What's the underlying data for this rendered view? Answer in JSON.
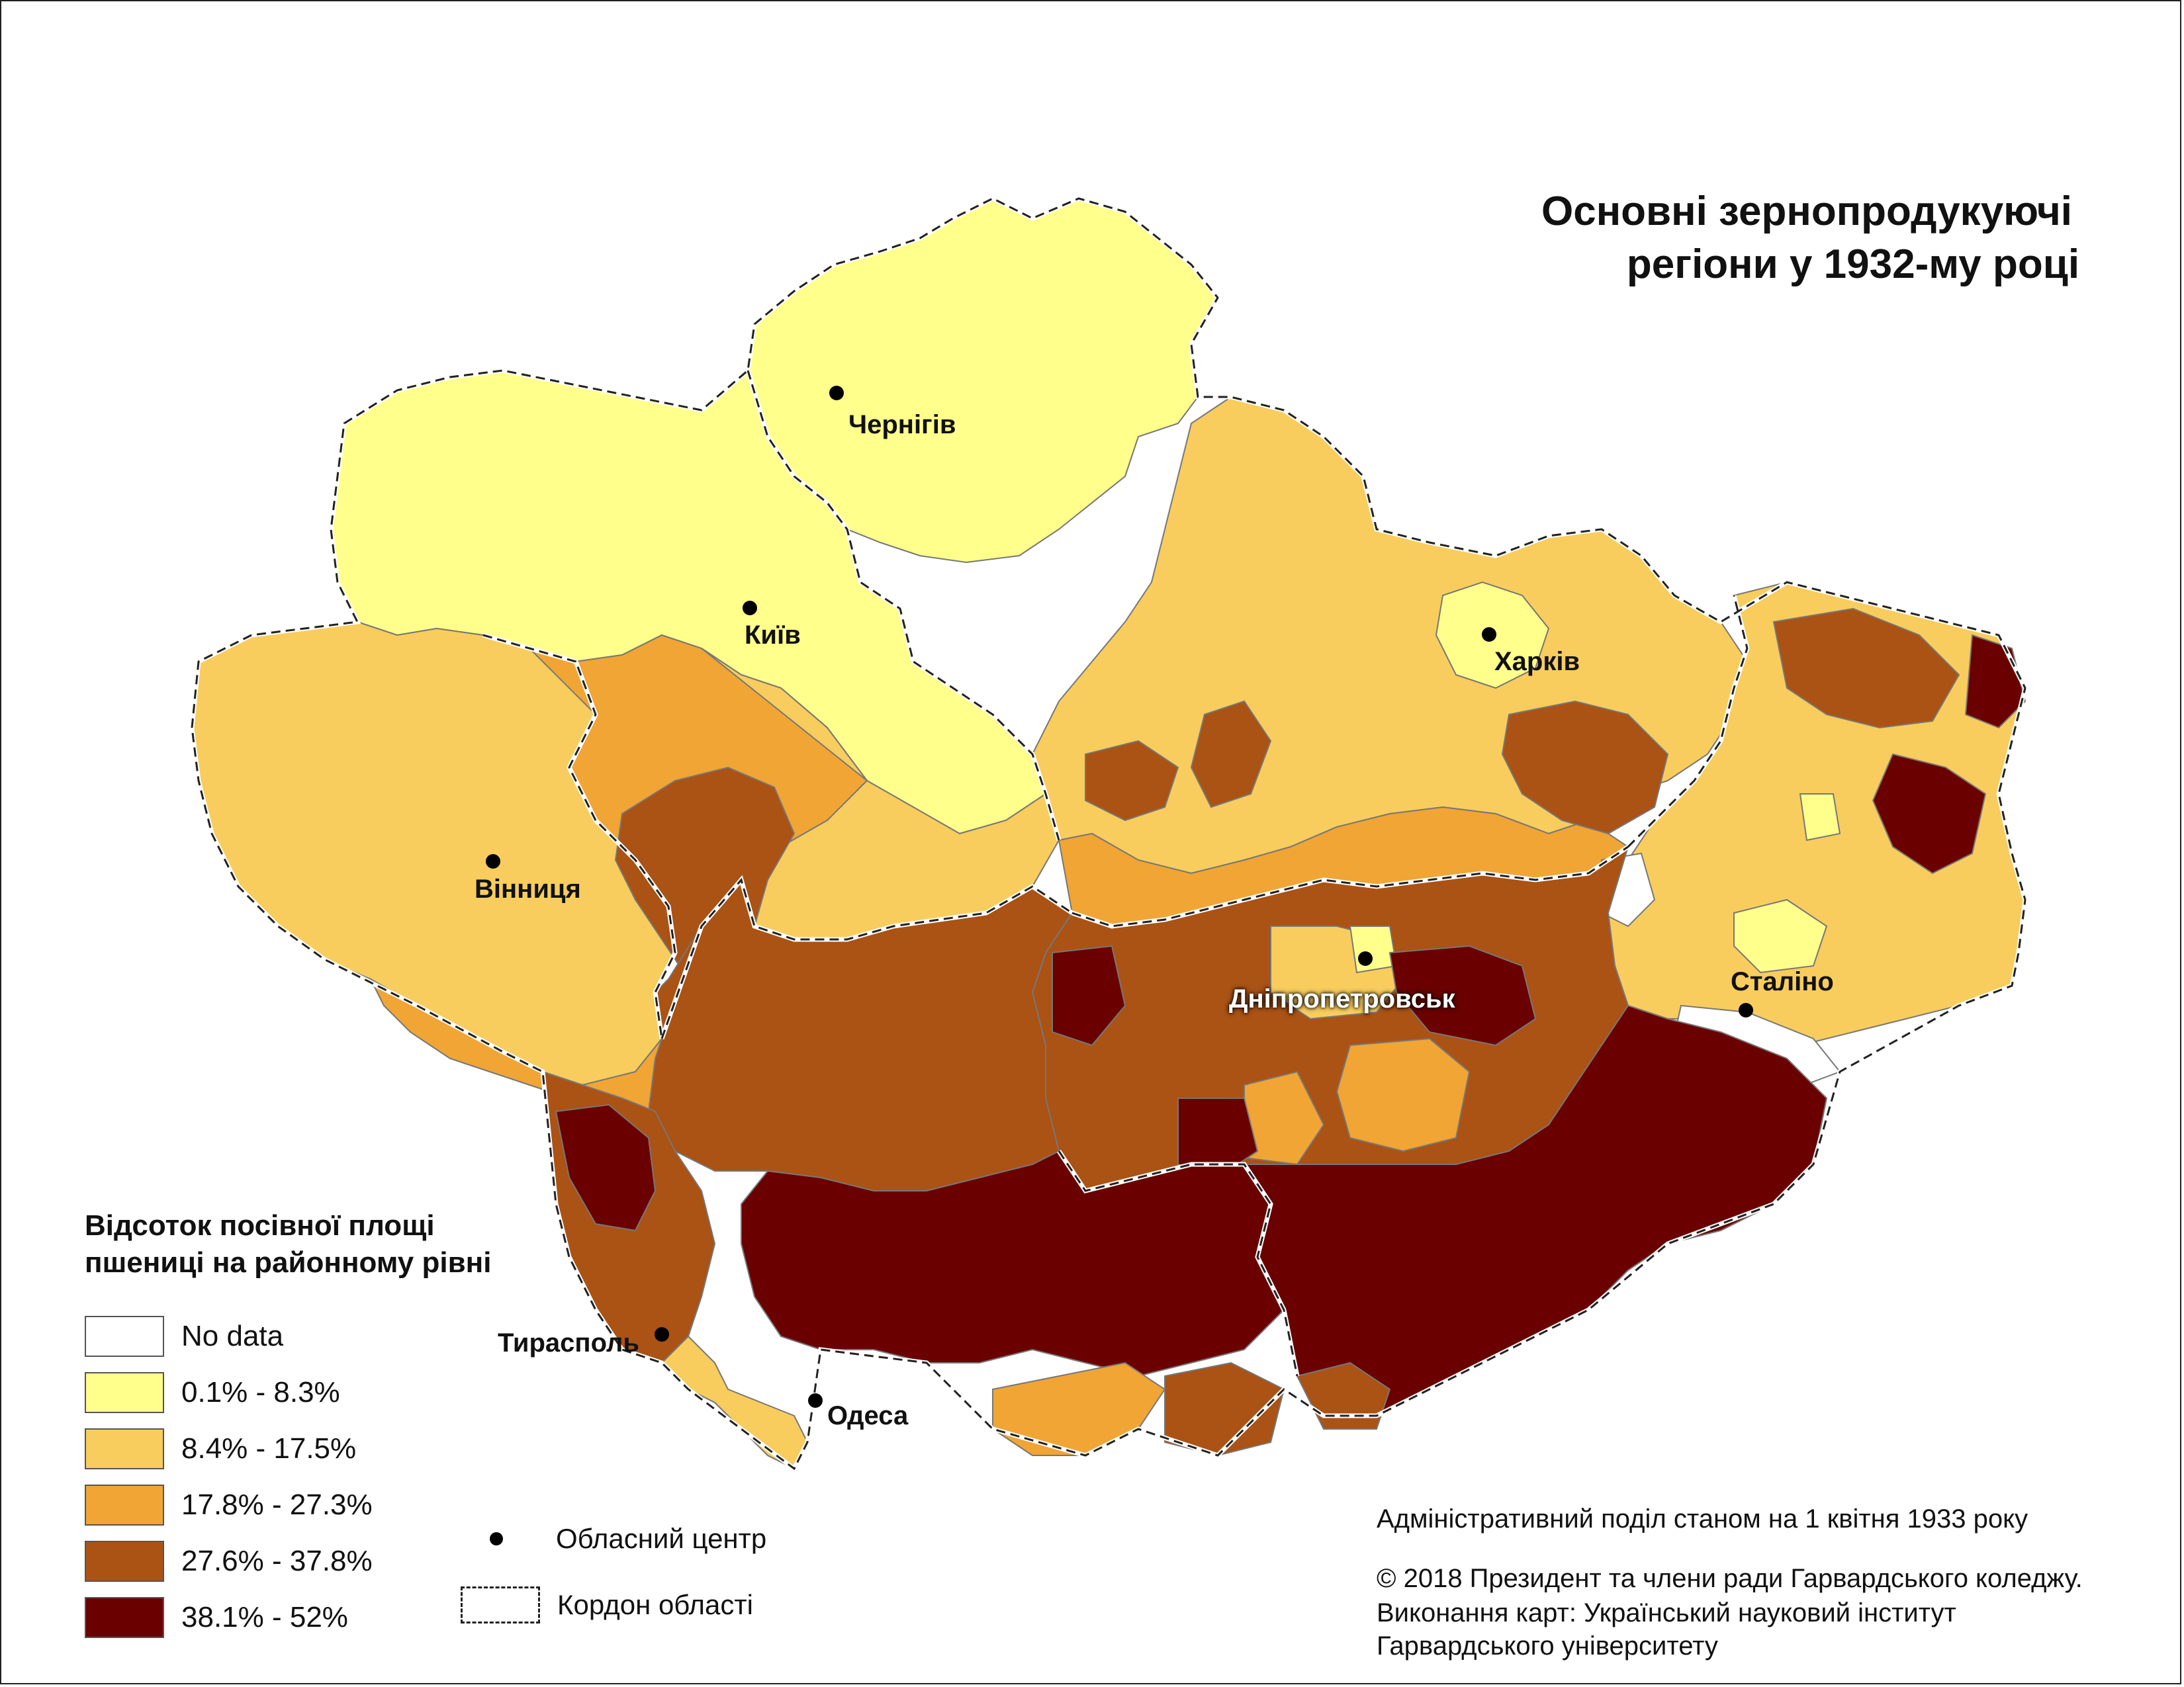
{
  "title": {
    "line1": "Основні зернопродукуючі",
    "line2": "регіони у 1932-му році"
  },
  "legend": {
    "title_line1": "Відсоток посівної площі",
    "title_line2": "пшениці на районному рівні",
    "classes": [
      {
        "label": "No data",
        "color": "#ffffff"
      },
      {
        "label": "0.1% - 8.3%",
        "color": "#ffff8c"
      },
      {
        "label": "8.4% - 17.5%",
        "color": "#f8cd5e"
      },
      {
        "label": "17.8% - 27.3%",
        "color": "#f0a535"
      },
      {
        "label": "27.6% - 37.8%",
        "color": "#ab5215"
      },
      {
        "label": "38.1% - 52%",
        "color": "#6a0000"
      }
    ],
    "symbols": {
      "center": "Обласний центр",
      "border": "Кордон області"
    }
  },
  "cities": [
    {
      "name": "Чернігів"
    },
    {
      "name": "Київ"
    },
    {
      "name": "Харків"
    },
    {
      "name": "Вінниця"
    },
    {
      "name": "Дніпропетровськ"
    },
    {
      "name": "Сталіно"
    },
    {
      "name": "Тирасполь"
    },
    {
      "name": "Одеса"
    }
  ],
  "footer": {
    "line1": "Адміністративний поділ станом на 1 квітня 1933 року",
    "line2": "© 2018 Президент та члени ради Гарвардського коледжу.",
    "line3": "Виконання карт: Український науковий інститут",
    "line4": "Гарвардського університету"
  }
}
